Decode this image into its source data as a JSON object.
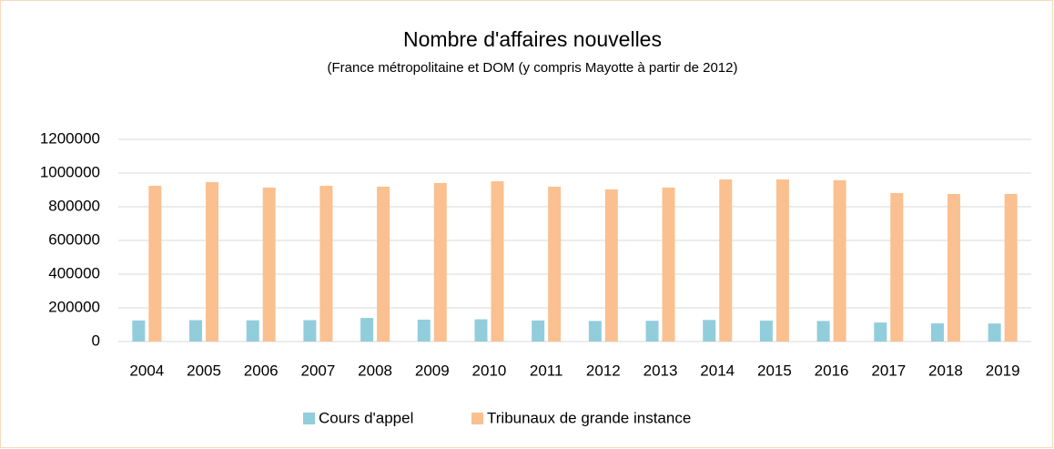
{
  "chart_data": {
    "type": "bar",
    "title": "Nombre d'affaires nouvelles",
    "subtitle": "(France métropolitaine et DOM (y compris Mayotte à partir de 2012)",
    "categories": [
      "2004",
      "2005",
      "2006",
      "2007",
      "2008",
      "2009",
      "2010",
      "2011",
      "2012",
      "2013",
      "2014",
      "2015",
      "2016",
      "2017",
      "2018",
      "2019"
    ],
    "series": [
      {
        "name": "Cours d'appel",
        "color": "#92cddc",
        "values": [
          125000,
          127000,
          126000,
          127000,
          140000,
          130000,
          132000,
          125000,
          122000,
          123000,
          128000,
          124000,
          122000,
          113000,
          108000,
          107000
        ]
      },
      {
        "name": "Tribunaux de grande instance",
        "color": "#fac090",
        "values": [
          924000,
          946000,
          914000,
          924000,
          919000,
          941000,
          951000,
          919000,
          903000,
          914000,
          962000,
          962000,
          957000,
          881000,
          876000,
          876000
        ]
      }
    ],
    "ylim": [
      0,
      1200000
    ],
    "yticks": [
      0,
      200000,
      400000,
      600000,
      800000,
      1000000,
      1200000
    ],
    "grid": true,
    "legend": "bottom"
  }
}
